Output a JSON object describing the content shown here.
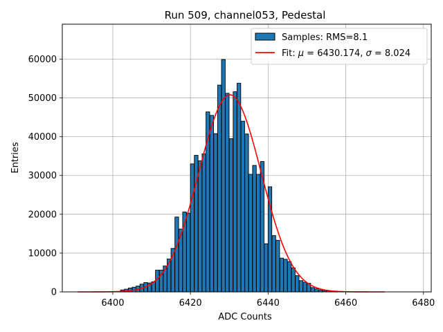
{
  "chart_data": {
    "type": "bar",
    "title": "Run 509, channel053, Pedestal",
    "xlabel": "ADC Counts",
    "ylabel": "Entries",
    "xlim": [
      6387,
      6482
    ],
    "ylim": [
      0,
      69000
    ],
    "xticks": [
      6400,
      6420,
      6440,
      6460,
      6480
    ],
    "yticks": [
      0,
      10000,
      20000,
      30000,
      40000,
      50000,
      60000
    ],
    "grid": true,
    "legend_position": "top-right",
    "legend": {
      "hist_label": "Samples: RMS=8.1",
      "fit_label_prefix": "Fit: ",
      "fit_mu_symbol": "μ",
      "fit_mu_value": " = 6430.174, ",
      "fit_sigma_symbol": "σ",
      "fit_sigma_value": " = 8.024"
    },
    "histogram": {
      "name": "Samples: RMS=8.1",
      "color": "#1f77b4",
      "edge_color": "#000000",
      "bin_left": [
        6402,
        6403,
        6404,
        6405,
        6406,
        6407,
        6408,
        6409,
        6410,
        6411,
        6412,
        6413,
        6414,
        6415,
        6416,
        6417,
        6418,
        6419,
        6420,
        6421,
        6422,
        6423,
        6424,
        6425,
        6426,
        6427,
        6428,
        6429,
        6430,
        6431,
        6432,
        6433,
        6434,
        6435,
        6436,
        6437,
        6438,
        6439,
        6440,
        6441,
        6442,
        6443,
        6444,
        6445,
        6446,
        6447,
        6448,
        6449,
        6450,
        6451,
        6452,
        6453,
        6454,
        6455,
        6456
      ],
      "bin_width": 0.95,
      "values": [
        500,
        700,
        1000,
        1200,
        1500,
        2000,
        2400,
        2300,
        2600,
        5600,
        5600,
        6700,
        8500,
        11200,
        19300,
        16200,
        20600,
        20300,
        33000,
        35200,
        33800,
        35600,
        46400,
        45500,
        40800,
        53300,
        59900,
        51200,
        39500,
        51600,
        53800,
        44000,
        40700,
        30300,
        32600,
        30300,
        33600,
        12400,
        27100,
        14500,
        13300,
        8700,
        8400,
        7800,
        6200,
        4200,
        2900,
        2500,
        2200,
        1100,
        800,
        500,
        350,
        250,
        150
      ]
    },
    "fit": {
      "name": "Fit",
      "color": "#ff0000",
      "type": "gaussian",
      "mu": 6430.174,
      "sigma": 8.024,
      "amplitude": 50800,
      "x_range": [
        6391,
        6470
      ]
    }
  }
}
